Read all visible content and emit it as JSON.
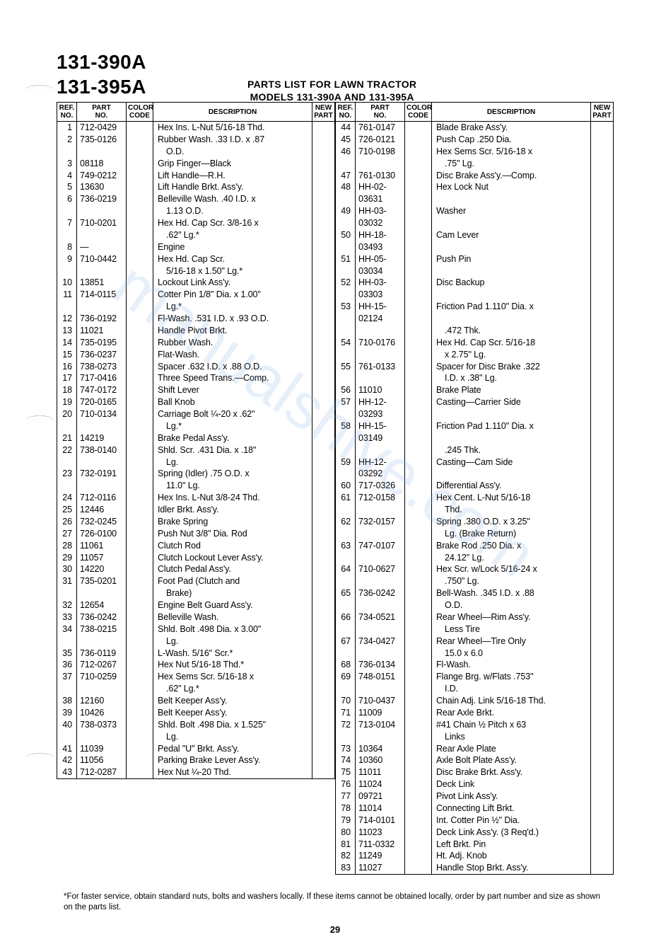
{
  "models": [
    "131-390A",
    "131-395A"
  ],
  "title_line1": "PARTS LIST FOR LAWN TRACTOR",
  "title_line2": "MODELS 131-390A AND 131-395A",
  "watermark_text": "manualshive.com",
  "page_number": "29",
  "footnote": "*For faster service, obtain standard nuts, bolts and washers locally. If these items cannot be obtained locally, order by part number and size as shown on the parts list.",
  "headers": {
    "ref": "REF.\nNO.",
    "part": "PART\nNO.",
    "color": "COLOR\nCODE",
    "desc": "DESCRIPTION",
    "new": "NEW\nPART"
  },
  "left_rows": [
    {
      "ref": "1",
      "part": "712-0429",
      "desc": "Hex Ins. L-Nut 5/16-18 Thd."
    },
    {
      "ref": "2",
      "part": "735-0126",
      "desc": "Rubber Wash. .33 I.D. x .87"
    },
    {
      "ref": "",
      "part": "",
      "desc": "O.D.",
      "cont": true
    },
    {
      "ref": "3",
      "part": "08118",
      "desc": "Grip Finger—Black"
    },
    {
      "ref": "4",
      "part": "749-0212",
      "desc": "Lift Handle—R.H."
    },
    {
      "ref": "5",
      "part": "13630",
      "desc": "Lift Handle Brkt. Ass'y."
    },
    {
      "ref": "6",
      "part": "736-0219",
      "desc": "Belleville Wash. .40 I.D. x"
    },
    {
      "ref": "",
      "part": "",
      "desc": "1.13 O.D.",
      "cont": true
    },
    {
      "ref": "7",
      "part": "710-0201",
      "desc": "Hex Hd. Cap Scr. 3/8-16 x"
    },
    {
      "ref": "",
      "part": "",
      "desc": ".62\" Lg.*",
      "cont": true
    },
    {
      "ref": "8",
      "part": "—",
      "desc": "Engine"
    },
    {
      "ref": "9",
      "part": "710-0442",
      "desc": "Hex Hd. Cap Scr."
    },
    {
      "ref": "",
      "part": "",
      "desc": "5/16-18 x 1.50\" Lg.*",
      "cont": true
    },
    {
      "ref": "10",
      "part": "13851",
      "desc": "Lockout Link Ass'y."
    },
    {
      "ref": "11",
      "part": "714-0115",
      "desc": "Cotter Pin 1/8\" Dia. x 1.00\""
    },
    {
      "ref": "",
      "part": "",
      "desc": "Lg.*",
      "cont": true
    },
    {
      "ref": "12",
      "part": "736-0192",
      "desc": "Fl-Wash. .531 I.D. x .93 O.D."
    },
    {
      "ref": "13",
      "part": "11021",
      "desc": "Handle Pivot Brkt."
    },
    {
      "ref": "14",
      "part": "735-0195",
      "desc": "Rubber Wash."
    },
    {
      "ref": "15",
      "part": "736-0237",
      "desc": "Flat-Wash."
    },
    {
      "ref": "16",
      "part": "738-0273",
      "desc": "Spacer .632 I.D. x .88 O.D."
    },
    {
      "ref": "17",
      "part": "717-0416",
      "desc": "Three Speed Trans.—Comp."
    },
    {
      "ref": "18",
      "part": "747-0172",
      "desc": "Shift Lever"
    },
    {
      "ref": "19",
      "part": "720-0165",
      "desc": "Ball Knob"
    },
    {
      "ref": "20",
      "part": "710-0134",
      "desc": "Carriage Bolt ¼-20 x .62\""
    },
    {
      "ref": "",
      "part": "",
      "desc": "Lg.*",
      "cont": true
    },
    {
      "ref": "21",
      "part": "14219",
      "desc": "Brake Pedal Ass'y."
    },
    {
      "ref": "22",
      "part": "738-0140",
      "desc": "Shld. Scr. .431 Dia. x .18\""
    },
    {
      "ref": "",
      "part": "",
      "desc": "Lg.",
      "cont": true
    },
    {
      "ref": "23",
      "part": "732-0191",
      "desc": "Spring (Idler) .75 O.D. x"
    },
    {
      "ref": "",
      "part": "",
      "desc": "11.0\" Lg.",
      "cont": true
    },
    {
      "ref": "24",
      "part": "712-0116",
      "desc": "Hex Ins. L-Nut 3/8-24 Thd."
    },
    {
      "ref": "25",
      "part": "12446",
      "desc": "Idler Brkt. Ass'y."
    },
    {
      "ref": "26",
      "part": "732-0245",
      "desc": "Brake Spring"
    },
    {
      "ref": "27",
      "part": "726-0100",
      "desc": "Push Nut 3/8\" Dia. Rod"
    },
    {
      "ref": "28",
      "part": "11061",
      "desc": "Clutch Rod"
    },
    {
      "ref": "29",
      "part": "11057",
      "desc": "Clutch Lockout Lever Ass'y."
    },
    {
      "ref": "30",
      "part": "14220",
      "desc": "Clutch Pedal Ass'y."
    },
    {
      "ref": "31",
      "part": "735-0201",
      "desc": "Foot Pad (Clutch and"
    },
    {
      "ref": "",
      "part": "",
      "desc": "Brake)",
      "cont": true
    },
    {
      "ref": "32",
      "part": "12654",
      "desc": "Engine Belt Guard Ass'y."
    },
    {
      "ref": "33",
      "part": "736-0242",
      "desc": "Belleville Wash."
    },
    {
      "ref": "34",
      "part": "738-0215",
      "desc": "Shld. Bolt .498 Dia. x 3.00\""
    },
    {
      "ref": "",
      "part": "",
      "desc": "Lg.",
      "cont": true
    },
    {
      "ref": "35",
      "part": "736-0119",
      "desc": "L-Wash. 5/16\" Scr.*"
    },
    {
      "ref": "36",
      "part": "712-0267",
      "desc": "Hex Nut 5/16-18 Thd.*"
    },
    {
      "ref": "37",
      "part": "710-0259",
      "desc": "Hex Sems Scr. 5/16-18 x"
    },
    {
      "ref": "",
      "part": "",
      "desc": ".62\" Lg.*",
      "cont": true
    },
    {
      "ref": "38",
      "part": "12160",
      "desc": "Belt Keeper Ass'y."
    },
    {
      "ref": "39",
      "part": "10426",
      "desc": "Belt Keeper Ass'y."
    },
    {
      "ref": "40",
      "part": "738-0373",
      "desc": "Shld. Bolt .498 Dia. x 1.525\""
    },
    {
      "ref": "",
      "part": "",
      "desc": "Lg.",
      "cont": true
    },
    {
      "ref": "41",
      "part": "11039",
      "desc": "Pedal \"U\" Brkt. Ass'y."
    },
    {
      "ref": "42",
      "part": "11056",
      "desc": "Parking Brake Lever Ass'y."
    },
    {
      "ref": "43",
      "part": "712-0287",
      "desc": "Hex Nut ¼-20 Thd."
    }
  ],
  "right_rows": [
    {
      "ref": "44",
      "part": "761-0147",
      "desc": "Blade Brake Ass'y."
    },
    {
      "ref": "45",
      "part": "726-0121",
      "desc": "Push Cap .250 Dia."
    },
    {
      "ref": "46",
      "part": "710-0198",
      "desc": "Hex Sems Scr. 5/16-18 x"
    },
    {
      "ref": "",
      "part": "",
      "desc": ".75\" Lg.",
      "cont": true
    },
    {
      "ref": "47",
      "part": "761-0130",
      "desc": "Disc Brake Ass'y.—Comp."
    },
    {
      "ref": "48",
      "part": "HH-02-03631",
      "desc": "Hex Lock Nut"
    },
    {
      "ref": "49",
      "part": "HH-03-03032",
      "desc": "Washer"
    },
    {
      "ref": "50",
      "part": "HH-18-03493",
      "desc": "Cam Lever"
    },
    {
      "ref": "51",
      "part": "HH-05-03034",
      "desc": "Push Pin"
    },
    {
      "ref": "52",
      "part": "HH-03-03303",
      "desc": "Disc Backup"
    },
    {
      "ref": "53",
      "part": "HH-15-02124",
      "desc": "Friction Pad 1.110\" Dia. x"
    },
    {
      "ref": "",
      "part": "",
      "desc": ".472 Thk.",
      "cont": true
    },
    {
      "ref": "54",
      "part": "710-0176",
      "desc": "Hex Hd. Cap Scr. 5/16-18"
    },
    {
      "ref": "",
      "part": "",
      "desc": "x 2.75\" Lg.",
      "cont": true
    },
    {
      "ref": "55",
      "part": "761-0133",
      "desc": "Spacer for Disc Brake .322"
    },
    {
      "ref": "",
      "part": "",
      "desc": "I.D. x .38\" Lg.",
      "cont": true
    },
    {
      "ref": "56",
      "part": "11010",
      "desc": "Brake Plate"
    },
    {
      "ref": "57",
      "part": "HH-12-03293",
      "desc": "Casting—Carrier Side"
    },
    {
      "ref": "58",
      "part": "HH-15-03149",
      "desc": "Friction Pad 1.110\" Dia. x"
    },
    {
      "ref": "",
      "part": "",
      "desc": ".245 Thk.",
      "cont": true
    },
    {
      "ref": "59",
      "part": "HH-12-03292",
      "desc": "Casting—Cam Side"
    },
    {
      "ref": "60",
      "part": "717-0326",
      "desc": "Differential Ass'y."
    },
    {
      "ref": "61",
      "part": "712-0158",
      "desc": "Hex Cent. L-Nut 5/16-18"
    },
    {
      "ref": "",
      "part": "",
      "desc": "Thd.",
      "cont": true
    },
    {
      "ref": "62",
      "part": "732-0157",
      "desc": "Spring .380 O.D. x 3.25\""
    },
    {
      "ref": "",
      "part": "",
      "desc": "Lg. (Brake Return)",
      "cont": true
    },
    {
      "ref": "63",
      "part": "747-0107",
      "desc": "Brake Rod .250 Dia. x"
    },
    {
      "ref": "",
      "part": "",
      "desc": "24.12\" Lg.",
      "cont": true
    },
    {
      "ref": "64",
      "part": "710-0627",
      "desc": "Hex Scr. w/Lock 5/16-24 x"
    },
    {
      "ref": "",
      "part": "",
      "desc": ".750\" Lg.",
      "cont": true
    },
    {
      "ref": "65",
      "part": "736-0242",
      "desc": "Bell-Wash. .345 I.D. x .88"
    },
    {
      "ref": "",
      "part": "",
      "desc": "O.D.",
      "cont": true
    },
    {
      "ref": "66",
      "part": "734-0521",
      "desc": "Rear Wheel—Rim Ass'y."
    },
    {
      "ref": "",
      "part": "",
      "desc": "Less Tire",
      "cont": true
    },
    {
      "ref": "67",
      "part": "734-0427",
      "desc": "Rear Wheel—Tire Only"
    },
    {
      "ref": "",
      "part": "",
      "desc": "15.0 x 6.0",
      "cont": true
    },
    {
      "ref": "68",
      "part": "736-0134",
      "desc": "Fl-Wash."
    },
    {
      "ref": "69",
      "part": "748-0151",
      "desc": "Flange Brg. w/Flats .753\""
    },
    {
      "ref": "",
      "part": "",
      "desc": "I.D.",
      "cont": true
    },
    {
      "ref": "70",
      "part": "710-0437",
      "desc": "Chain Adj. Link 5/16-18 Thd."
    },
    {
      "ref": "71",
      "part": "11009",
      "desc": "Rear Axle Brkt."
    },
    {
      "ref": "72",
      "part": "713-0104",
      "desc": "#41 Chain ½ Pitch x 63"
    },
    {
      "ref": "",
      "part": "",
      "desc": "Links",
      "cont": true
    },
    {
      "ref": "73",
      "part": "10364",
      "desc": "Rear Axle Plate"
    },
    {
      "ref": "74",
      "part": "10360",
      "desc": "Axle Bolt Plate Ass'y."
    },
    {
      "ref": "75",
      "part": "11011",
      "desc": "Disc Brake Brkt. Ass'y."
    },
    {
      "ref": "76",
      "part": "11024",
      "desc": "Deck Link"
    },
    {
      "ref": "77",
      "part": "09721",
      "desc": "Pivot Link Ass'y."
    },
    {
      "ref": "78",
      "part": "11014",
      "desc": "Connecting Lift Brkt."
    },
    {
      "ref": "79",
      "part": "714-0101",
      "desc": "Int. Cotter Pin ½\" Dia."
    },
    {
      "ref": "80",
      "part": "11023",
      "desc": "Deck Link Ass'y. (3 Req'd.)"
    },
    {
      "ref": "81",
      "part": "711-0332",
      "desc": "Left Brkt. Pin"
    },
    {
      "ref": "82",
      "part": "11249",
      "desc": "Ht. Adj. Knob"
    },
    {
      "ref": "83",
      "part": "11027",
      "desc": "Handle Stop Brkt. Ass'y."
    }
  ]
}
